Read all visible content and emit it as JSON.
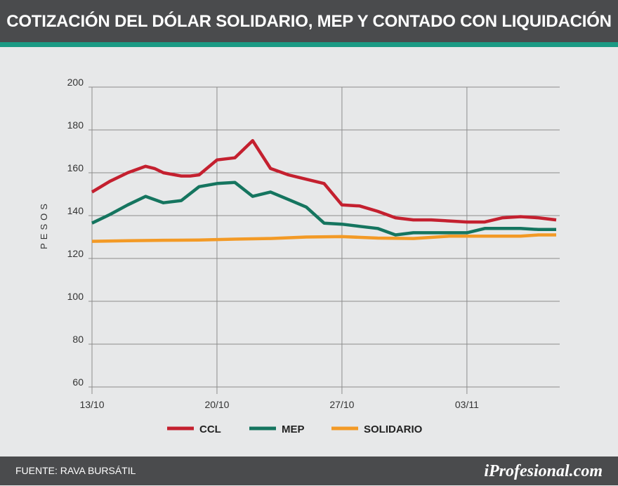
{
  "header": {
    "title": "COTIZACIÓN DEL DÓLAR SOLIDARIO, MEP Y CONTADO CON LIQUIDACIÓN"
  },
  "footer": {
    "source": "FUENTE: RAVA BURSÁTIL",
    "brand": "iProfesional.com"
  },
  "colors": {
    "header_bg": "#4a4b4d",
    "accent": "#1b9a84",
    "background": "#e7e8e9"
  },
  "chart_data": {
    "type": "line",
    "title": "COTIZACIÓN DEL DÓLAR SOLIDARIO, MEP Y CONTADO CON LIQUIDACIÓN",
    "ylabel": "PESOS",
    "xlabel": "",
    "ylim": [
      60,
      200
    ],
    "yticks": [
      60,
      80,
      100,
      120,
      140,
      160,
      180,
      200
    ],
    "xlim": [
      0,
      26
    ],
    "xticks": [
      {
        "value": 0,
        "label": "13/10"
      },
      {
        "value": 7,
        "label": "20/10"
      },
      {
        "value": 14,
        "label": "27/10"
      },
      {
        "value": 21,
        "label": "03/11"
      }
    ],
    "grid": true,
    "legend_position": "bottom",
    "series": [
      {
        "name": "CCL",
        "color": "#c4202f",
        "x": [
          0,
          1,
          2,
          3,
          3.5,
          4,
          5,
          5.5,
          6,
          7,
          8,
          9,
          10,
          11,
          12,
          13,
          14,
          15,
          16,
          17,
          18,
          19,
          20,
          21,
          22,
          23,
          24,
          25,
          26
        ],
        "values": [
          151,
          156,
          160,
          163,
          162,
          160,
          158.5,
          158.5,
          159,
          166,
          167,
          175,
          162,
          159,
          157,
          155,
          145,
          144.5,
          142,
          139,
          138,
          138,
          137.5,
          137,
          137,
          139,
          139.5,
          139,
          138
        ]
      },
      {
        "name": "MEP",
        "color": "#15755f",
        "x": [
          0,
          1,
          2,
          3,
          4,
          5,
          6,
          7,
          8,
          9,
          10,
          11,
          12,
          13,
          14,
          15,
          16,
          17,
          18,
          19,
          20,
          21,
          22,
          23,
          24,
          25,
          26
        ],
        "values": [
          136.5,
          140.5,
          145,
          149,
          146,
          147,
          153.5,
          155,
          155.5,
          149,
          151,
          147.5,
          144,
          136.5,
          136,
          135,
          134,
          131,
          132,
          132,
          132,
          132,
          134,
          134,
          134,
          133.5,
          133.5
        ]
      },
      {
        "name": "SOLIDARIO",
        "color": "#f39a26",
        "x": [
          0,
          2,
          4,
          6,
          8,
          10,
          12,
          14,
          16,
          18,
          20,
          22,
          24,
          25,
          26
        ],
        "values": [
          128,
          128.3,
          128.5,
          128.6,
          129,
          129.3,
          130,
          130.2,
          129.5,
          129.3,
          130.4,
          130.4,
          130.4,
          131,
          131
        ]
      }
    ]
  }
}
